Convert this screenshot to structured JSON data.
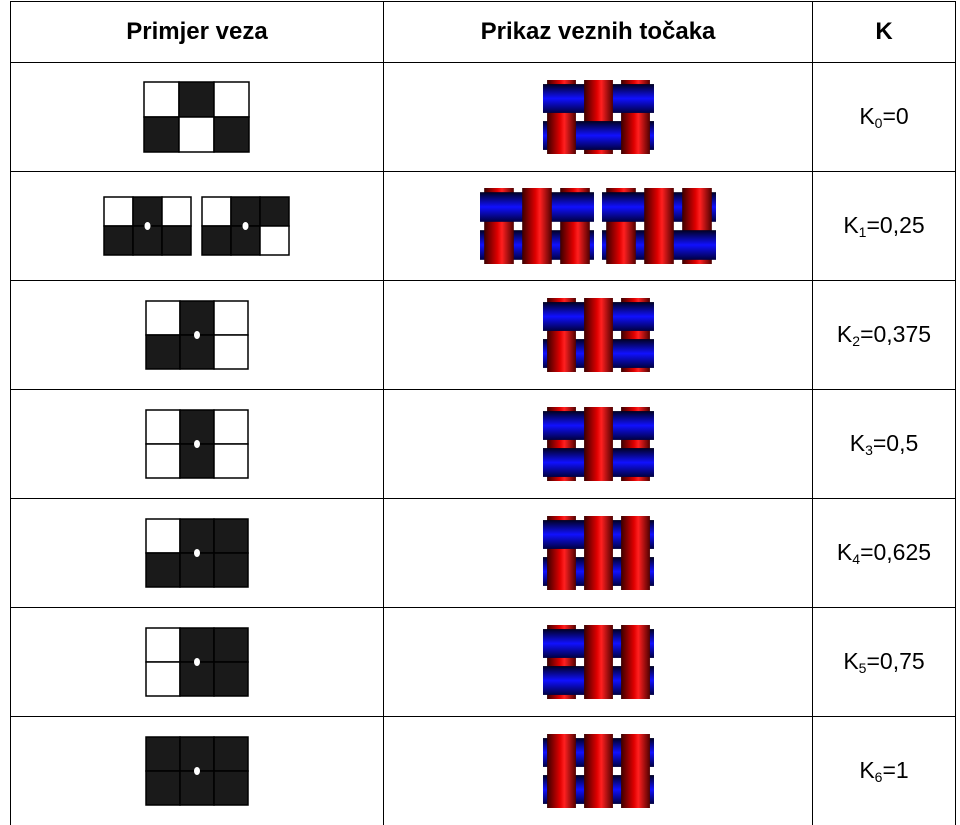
{
  "table": {
    "header": [
      "Primjer veza",
      "Prikaz veznih točaka",
      "K"
    ],
    "rows": [
      {
        "k_symbol": "K",
        "k_index": "0",
        "k_value": "=0"
      },
      {
        "k_symbol": "K",
        "k_index": "1",
        "k_value": "=0,25"
      },
      {
        "k_symbol": "K",
        "k_index": "2",
        "k_value": "=0,375"
      },
      {
        "k_symbol": "K",
        "k_index": "3",
        "k_value": "=0,5"
      },
      {
        "k_symbol": "K",
        "k_index": "4",
        "k_value": "=0,625"
      },
      {
        "k_symbol": "K",
        "k_index": "5",
        "k_value": "=0,75"
      },
      {
        "k_symbol": "K",
        "k_index": "6",
        "k_value": "=1"
      }
    ]
  }
}
